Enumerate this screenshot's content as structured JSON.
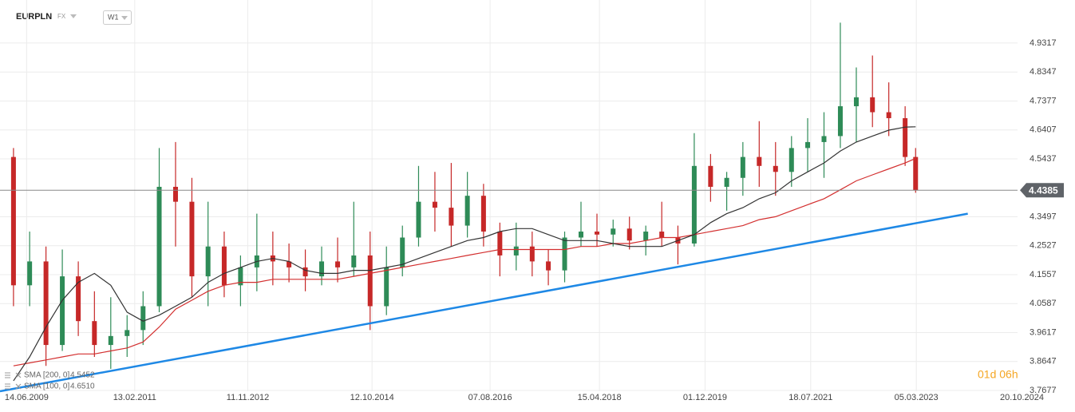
{
  "header": {
    "symbol": "EURPLN",
    "market": "FX",
    "interval": "W1",
    "timer": "01d 06h"
  },
  "chart_data": {
    "type": "candlestick",
    "xlim": [
      "15.01.2009",
      "15.08.2025"
    ],
    "xticks": [
      "14.06.2009",
      "13.02.2011",
      "11.11.2012",
      "12.10.2014",
      "07.08.2016",
      "15.04.2018",
      "01.12.2019",
      "18.07.2021",
      "05.03.2023",
      "20.10.2024"
    ],
    "ylim": [
      3.765,
      5.076
    ],
    "yticks": [
      4.9317,
      4.8347,
      4.7377,
      4.6407,
      4.5437,
      4.3497,
      4.2527,
      4.1557,
      4.0587,
      3.9617,
      3.8647,
      3.7677
    ],
    "grid": true,
    "up_color": "#2e8b57",
    "down_color": "#c62828",
    "candles": {
      "x": [
        "01.04.2009",
        "01.07.2009",
        "01.10.2009",
        "01.01.2010",
        "01.04.2010",
        "01.07.2010",
        "01.10.2010",
        "01.01.2011",
        "01.04.2011",
        "01.07.2011",
        "01.10.2011",
        "01.01.2012",
        "01.04.2012",
        "01.07.2012",
        "01.10.2012",
        "01.01.2013",
        "01.04.2013",
        "01.07.2013",
        "01.10.2013",
        "01.01.2014",
        "01.04.2014",
        "01.07.2014",
        "01.10.2014",
        "01.01.2015",
        "01.04.2015",
        "01.07.2015",
        "01.10.2015",
        "01.01.2016",
        "01.04.2016",
        "01.07.2016",
        "01.10.2016",
        "01.01.2017",
        "01.04.2017",
        "01.07.2017",
        "01.10.2017",
        "01.01.2018",
        "01.04.2018",
        "01.07.2018",
        "01.10.2018",
        "01.01.2019",
        "01.04.2019",
        "01.07.2019",
        "01.10.2019",
        "01.01.2020",
        "01.04.2020",
        "01.07.2020",
        "01.10.2020",
        "01.01.2021",
        "01.04.2021",
        "01.07.2021",
        "01.10.2021",
        "01.01.2022",
        "01.04.2022",
        "01.07.2022",
        "01.10.2022",
        "01.01.2023",
        "01.03.2023"
      ],
      "open": [
        4.55,
        4.12,
        4.2,
        3.92,
        4.15,
        4.0,
        3.92,
        3.95,
        3.97,
        4.05,
        4.45,
        4.4,
        4.15,
        4.25,
        4.12,
        4.18,
        4.22,
        4.2,
        4.18,
        4.15,
        4.2,
        4.18,
        4.22,
        4.05,
        4.18,
        4.28,
        4.4,
        4.38,
        4.32,
        4.42,
        4.3,
        4.22,
        4.25,
        4.2,
        4.17,
        4.28,
        4.3,
        4.29,
        4.31,
        4.27,
        4.3,
        4.28,
        4.26,
        4.52,
        4.45,
        4.48,
        4.55,
        4.52,
        4.5,
        4.58,
        4.6,
        4.62,
        4.72,
        4.75,
        4.7,
        4.68,
        4.55
      ],
      "high": [
        4.58,
        4.3,
        4.25,
        4.24,
        4.2,
        4.1,
        4.08,
        4.02,
        4.1,
        4.58,
        4.6,
        4.48,
        4.4,
        4.3,
        4.22,
        4.36,
        4.3,
        4.26,
        4.24,
        4.25,
        4.28,
        4.4,
        4.3,
        4.25,
        4.32,
        4.52,
        4.5,
        4.53,
        4.5,
        4.46,
        4.33,
        4.33,
        4.3,
        4.24,
        4.3,
        4.4,
        4.36,
        4.34,
        4.35,
        4.32,
        4.4,
        4.32,
        4.63,
        4.56,
        4.5,
        4.6,
        4.67,
        4.6,
        4.62,
        4.68,
        4.7,
        5.0,
        4.85,
        4.89,
        4.8,
        4.72,
        4.58
      ],
      "low": [
        4.05,
        4.05,
        3.85,
        3.9,
        3.95,
        3.88,
        3.84,
        3.88,
        3.92,
        4.03,
        4.25,
        4.08,
        4.05,
        4.08,
        4.05,
        4.1,
        4.12,
        4.13,
        4.1,
        4.12,
        4.13,
        4.15,
        3.97,
        4.02,
        4.15,
        4.25,
        4.3,
        4.25,
        4.28,
        4.25,
        4.15,
        4.17,
        4.15,
        4.12,
        4.13,
        4.25,
        4.25,
        4.25,
        4.24,
        4.22,
        4.25,
        4.19,
        4.25,
        4.4,
        4.37,
        4.42,
        4.45,
        4.42,
        4.45,
        4.5,
        4.48,
        4.58,
        4.6,
        4.65,
        4.62,
        4.52,
        4.43
      ],
      "close": [
        4.12,
        4.2,
        3.92,
        4.15,
        4.0,
        3.92,
        3.95,
        3.97,
        4.05,
        4.45,
        4.4,
        4.15,
        4.25,
        4.12,
        4.18,
        4.22,
        4.2,
        4.18,
        4.15,
        4.2,
        4.18,
        4.22,
        4.05,
        4.18,
        4.28,
        4.4,
        4.38,
        4.32,
        4.42,
        4.3,
        4.22,
        4.25,
        4.2,
        4.17,
        4.28,
        4.3,
        4.29,
        4.31,
        4.27,
        4.3,
        4.28,
        4.26,
        4.52,
        4.45,
        4.48,
        4.55,
        4.52,
        4.5,
        4.58,
        4.6,
        4.62,
        4.72,
        4.75,
        4.7,
        4.68,
        4.55,
        4.4385
      ]
    },
    "series": [
      {
        "name": "SMA [200, 0]",
        "color": "#d32f2f",
        "last": 4.5452,
        "values": [
          3.85,
          3.86,
          3.87,
          3.88,
          3.89,
          3.89,
          3.9,
          3.91,
          3.93,
          3.98,
          4.04,
          4.07,
          4.1,
          4.12,
          4.13,
          4.13,
          4.14,
          4.14,
          4.14,
          4.14,
          4.14,
          4.15,
          4.16,
          4.17,
          4.18,
          4.19,
          4.2,
          4.21,
          4.22,
          4.23,
          4.24,
          4.24,
          4.24,
          4.24,
          4.24,
          4.25,
          4.25,
          4.26,
          4.26,
          4.27,
          4.28,
          4.28,
          4.29,
          4.3,
          4.31,
          4.32,
          4.34,
          4.35,
          4.37,
          4.39,
          4.41,
          4.44,
          4.47,
          4.49,
          4.51,
          4.53,
          4.5452
        ]
      },
      {
        "name": "SMA [100, 0]",
        "color": "#333333",
        "last": {
          "value": 4.651,
          "label": "4.6510"
        },
        "values": [
          3.8,
          3.88,
          3.98,
          4.07,
          4.13,
          4.16,
          4.12,
          4.03,
          4.0,
          4.02,
          4.05,
          4.08,
          4.13,
          4.16,
          4.18,
          4.2,
          4.21,
          4.2,
          4.17,
          4.16,
          4.16,
          4.17,
          4.17,
          4.18,
          4.19,
          4.21,
          4.23,
          4.25,
          4.27,
          4.28,
          4.3,
          4.31,
          4.31,
          4.29,
          4.27,
          4.27,
          4.27,
          4.26,
          4.25,
          4.25,
          4.25,
          4.27,
          4.29,
          4.33,
          4.36,
          4.38,
          4.41,
          4.43,
          4.47,
          4.5,
          4.53,
          4.57,
          4.6,
          4.62,
          4.64,
          4.65,
          4.651
        ]
      }
    ],
    "trendline": {
      "color": "#1e88e5",
      "x": [
        "15.01.2009",
        "20.12.2023"
      ],
      "values": [
        3.765,
        4.36
      ]
    },
    "current_price": 4.4385
  }
}
